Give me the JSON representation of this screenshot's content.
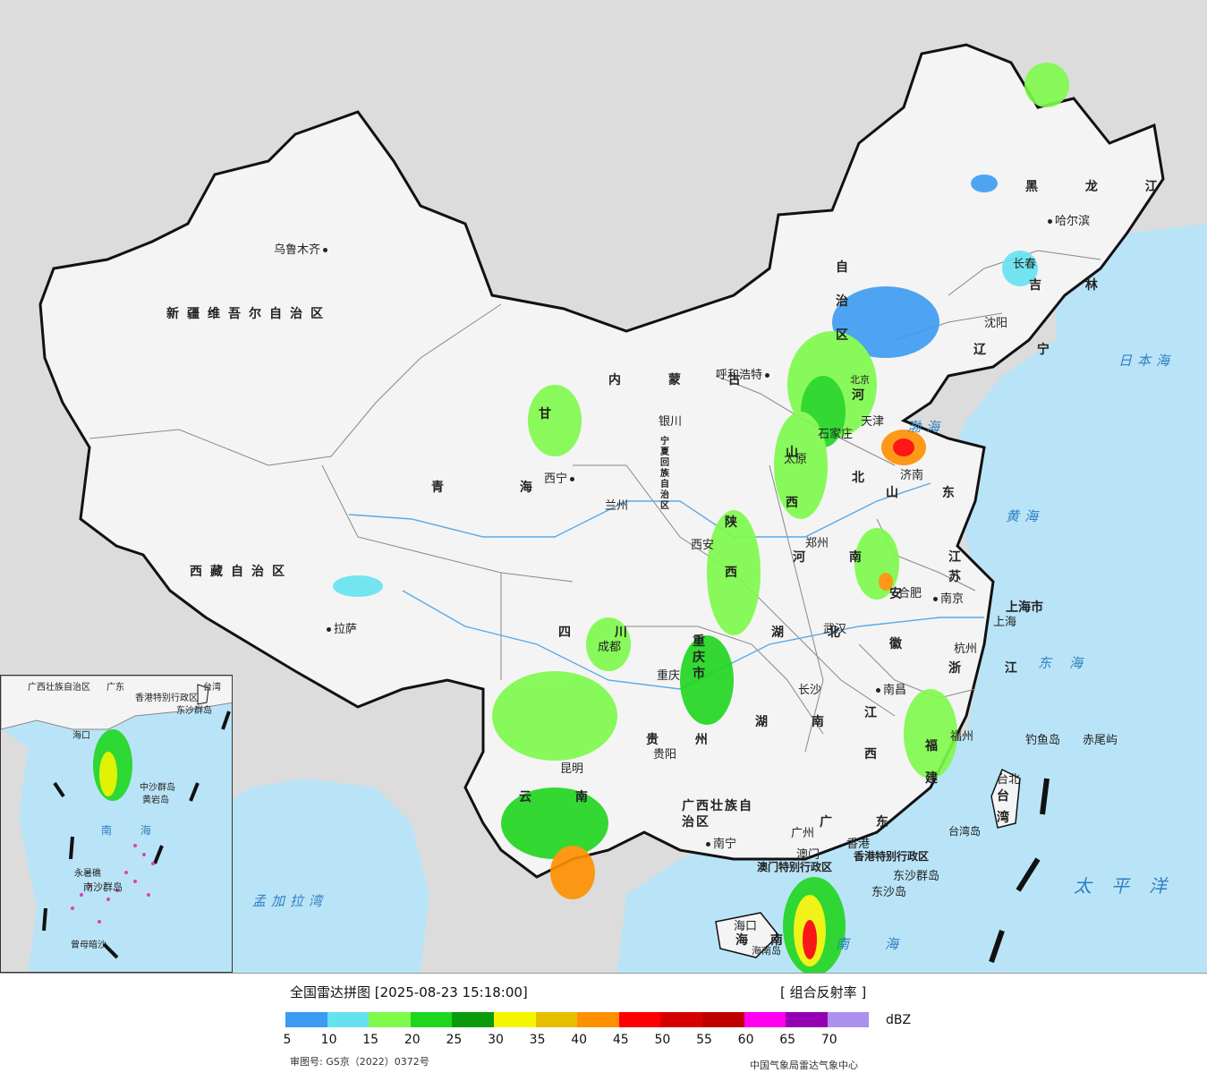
{
  "colors": {
    "land": "#f4f4f4",
    "foreign_land": "#dcdcdc",
    "sea": "#b9e4f7",
    "border": "#111111",
    "province_line": "#777777",
    "river": "#5aa9e6"
  },
  "provinces": [
    {
      "key": "xinjiang",
      "label": "新疆维吾尔自治区"
    },
    {
      "key": "xizang",
      "label": "西藏自治区"
    },
    {
      "key": "qinghai",
      "label": "青 海"
    },
    {
      "key": "neimenggu",
      "label": "内 蒙 古"
    },
    {
      "key": "gansu",
      "label": "甘"
    },
    {
      "key": "sichuan",
      "label": "四 川"
    },
    {
      "key": "yunnan",
      "label": "云 南"
    },
    {
      "key": "guizhou",
      "label": "贵 州"
    },
    {
      "key": "guangxi",
      "label": "广西壮族自治区"
    },
    {
      "key": "guangdong",
      "label": "广 东"
    },
    {
      "key": "hunan",
      "label": "湖 南"
    },
    {
      "key": "hubei",
      "label": "湖 北"
    },
    {
      "key": "henan",
      "label": "河 南"
    },
    {
      "key": "shaanxi",
      "label": "陕 西"
    },
    {
      "key": "shanxi",
      "label": "山 西"
    },
    {
      "key": "hebei",
      "label": "河 北"
    },
    {
      "key": "shandong",
      "label": "山 东"
    },
    {
      "key": "jiangsu",
      "label": "江 苏"
    },
    {
      "key": "anhui",
      "label": "安 徽"
    },
    {
      "key": "zhejiang",
      "label": "浙 江"
    },
    {
      "key": "jiangxi",
      "label": "江 西"
    },
    {
      "key": "fujian",
      "label": "福 建"
    },
    {
      "key": "taiwan",
      "label": "台 湾"
    },
    {
      "key": "hainan",
      "label": "海 南"
    },
    {
      "key": "heilongjiang",
      "label": "黑 龙 江"
    },
    {
      "key": "jilin",
      "label": "吉 林"
    },
    {
      "key": "liaoning",
      "label": "辽 宁"
    },
    {
      "key": "ningxia",
      "label": "宁夏回族自治区"
    },
    {
      "key": "chongqing",
      "label": "重庆市"
    },
    {
      "key": "shanghai",
      "label": "上海市"
    },
    {
      "key": "hongkong",
      "label": "香港特别行政区"
    },
    {
      "key": "macau",
      "label": "澳门特别行政区"
    },
    {
      "key": "nm_zizhiqu",
      "label": "自 治 区"
    }
  ],
  "cities": [
    {
      "key": "urumqi",
      "label": "乌鲁木齐"
    },
    {
      "key": "lhasa",
      "label": "拉萨"
    },
    {
      "key": "xining",
      "label": "西宁"
    },
    {
      "key": "lanzhou",
      "label": "兰州"
    },
    {
      "key": "yinchuan",
      "label": "银川"
    },
    {
      "key": "hohhot",
      "label": "呼和浩特"
    },
    {
      "key": "beijing",
      "label": "北京"
    },
    {
      "key": "tianjin",
      "label": "天津"
    },
    {
      "key": "shijiazhuang",
      "label": "石家庄"
    },
    {
      "key": "taiyuan",
      "label": "太原"
    },
    {
      "key": "jinan",
      "label": "济南"
    },
    {
      "key": "zhengzhou",
      "label": "郑州"
    },
    {
      "key": "xian",
      "label": "西安"
    },
    {
      "key": "hefei",
      "label": "合肥"
    },
    {
      "key": "nanjing",
      "label": "南京"
    },
    {
      "key": "shanghai_c",
      "label": "上海"
    },
    {
      "key": "hangzhou",
      "label": "杭州"
    },
    {
      "key": "wuhan",
      "label": "武汉"
    },
    {
      "key": "chengdu",
      "label": "成都"
    },
    {
      "key": "chongqing_c",
      "label": "重庆"
    },
    {
      "key": "changsha",
      "label": "长沙"
    },
    {
      "key": "nanchang",
      "label": "南昌"
    },
    {
      "key": "fuzhou",
      "label": "福州"
    },
    {
      "key": "taibei",
      "label": "台北"
    },
    {
      "key": "guiyang",
      "label": "贵阳"
    },
    {
      "key": "kunming",
      "label": "昆明"
    },
    {
      "key": "nanning",
      "label": "南宁"
    },
    {
      "key": "guangzhou",
      "label": "广州"
    },
    {
      "key": "hongkong_c",
      "label": "香港"
    },
    {
      "key": "macau_c",
      "label": "澳门"
    },
    {
      "key": "haikou",
      "label": "海口"
    },
    {
      "key": "harbin",
      "label": "哈尔滨"
    },
    {
      "key": "changchun",
      "label": "长春"
    },
    {
      "key": "shenyang",
      "label": "沈阳"
    },
    {
      "key": "diaoyu",
      "label": "钓鱼岛"
    },
    {
      "key": "chiwei",
      "label": "赤尾屿"
    },
    {
      "key": "dongsha_qd",
      "label": "东沙群岛"
    },
    {
      "key": "dongsha_d",
      "label": "东沙岛"
    },
    {
      "key": "hainan_dao",
      "label": "海南岛"
    },
    {
      "key": "taiwan_dao",
      "label": "台湾岛"
    }
  ],
  "seas": [
    {
      "key": "japan_sea",
      "label": "日本海"
    },
    {
      "key": "bohai",
      "label": "渤海"
    },
    {
      "key": "yellow_sea",
      "label": "黄海"
    },
    {
      "key": "east_sea",
      "label": "东海"
    },
    {
      "key": "pacific",
      "label": "太平洋"
    },
    {
      "key": "south_sea",
      "label": "南海"
    },
    {
      "key": "bengal",
      "label": "孟加拉湾"
    }
  ],
  "inset": {
    "labels": [
      "广西壮族自治区",
      "广东",
      "香港特别行政区",
      "台湾",
      "东沙群岛",
      "海口",
      "中沙群岛",
      "黄岩岛",
      "南 海",
      "永暑礁",
      "南沙群岛",
      "曾母暗沙"
    ]
  },
  "legend": {
    "title": "全国雷达拼图 [2025-08-23 15:18:00]",
    "type": "[ 组合反射率 ]",
    "unit": "dBZ",
    "colors": [
      "#3d9bf2",
      "#64e3ef",
      "#7dfa4a",
      "#1fd61f",
      "#0a9a0a",
      "#f5f500",
      "#e6c000",
      "#ff9000",
      "#ff0000",
      "#d60000",
      "#c00000",
      "#ff00f0",
      "#9600b4",
      "#ac90f0"
    ],
    "ticks": [
      "5",
      "10",
      "15",
      "20",
      "25",
      "30",
      "35",
      "40",
      "45",
      "50",
      "55",
      "60",
      "65",
      "70"
    ],
    "review_no": "审图号: GS京（2022）0372号",
    "source": "中国气象局雷达气象中心"
  }
}
